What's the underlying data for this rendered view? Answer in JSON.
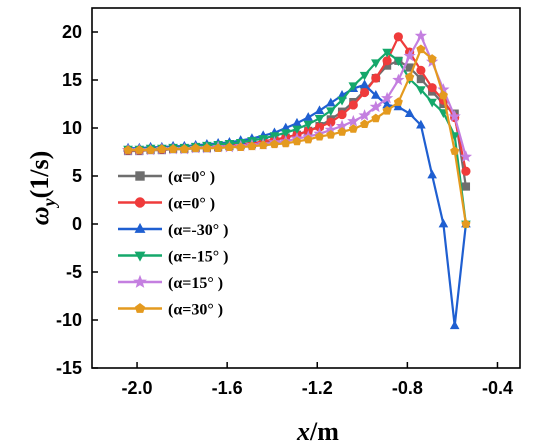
{
  "chart_data": {
    "type": "line",
    "title": "",
    "xlabel": {
      "italic": "x",
      "rest": "/m"
    },
    "ylabel": {
      "main": "ω",
      "sub": "y",
      "rest": "(1/s)"
    },
    "xlim": [
      -2.2,
      -0.3
    ],
    "ylim": [
      -15,
      22.5
    ],
    "xticks": [
      -2.0,
      -1.6,
      -1.2,
      -0.8,
      -0.4
    ],
    "xtick_labels": [
      "-2.0",
      "-1.6",
      "-1.2",
      "-0.8",
      "-0.4"
    ],
    "yticks": [
      -15,
      -10,
      -5,
      0,
      5,
      10,
      15,
      20
    ],
    "ytick_labels": [
      "-15",
      "-10",
      "-5",
      "0",
      "5",
      "10",
      "15",
      "20"
    ],
    "grid": false,
    "legend_position": "left",
    "x": [
      -2.04,
      -1.99,
      -1.94,
      -1.89,
      -1.84,
      -1.79,
      -1.74,
      -1.69,
      -1.64,
      -1.59,
      -1.54,
      -1.49,
      -1.44,
      -1.39,
      -1.34,
      -1.29,
      -1.24,
      -1.19,
      -1.14,
      -1.09,
      -1.04,
      -0.99,
      -0.94,
      -0.89,
      -0.84,
      -0.79,
      -0.74,
      -0.69,
      -0.64,
      -0.59,
      -0.54
    ],
    "series": [
      {
        "legend": "(α=0° )",
        "color": "#6e6e6e",
        "marker": "square",
        "values": [
          7.6,
          7.6,
          7.7,
          7.7,
          7.8,
          7.8,
          7.9,
          7.9,
          8.0,
          8.1,
          8.2,
          8.3,
          8.5,
          8.7,
          9.0,
          9.3,
          9.7,
          10.2,
          10.9,
          11.7,
          12.7,
          13.9,
          15.2,
          16.5,
          17.0,
          16.3,
          15.1,
          13.8,
          12.5,
          11.5,
          3.9
        ]
      },
      {
        "legend": "(α=0° )",
        "color": "#ef3b3b",
        "marker": "circle",
        "values": [
          7.7,
          7.7,
          7.8,
          7.8,
          7.9,
          7.9,
          8.0,
          8.0,
          8.1,
          8.2,
          8.3,
          8.4,
          8.6,
          8.8,
          9.0,
          9.3,
          9.7,
          10.1,
          10.6,
          11.4,
          12.4,
          13.7,
          15.2,
          17.0,
          19.5,
          17.9,
          16.0,
          14.2,
          12.9,
          11.1,
          5.5
        ]
      },
      {
        "legend": "(α=-30° )",
        "color": "#1f5fd1",
        "marker": "triangle",
        "values": [
          7.9,
          7.9,
          8.0,
          8.0,
          8.1,
          8.1,
          8.2,
          8.3,
          8.4,
          8.5,
          8.7,
          8.9,
          9.2,
          9.5,
          10.0,
          10.5,
          11.1,
          11.8,
          12.6,
          13.4,
          14.1,
          14.5,
          13.4,
          12.4,
          12.2,
          11.5,
          10.3,
          5.1,
          0.0,
          -10.6,
          0.0
        ]
      },
      {
        "legend": "(α=-15° )",
        "color": "#15a86b",
        "marker": "triangle-down",
        "values": [
          7.8,
          7.8,
          7.9,
          7.9,
          8.0,
          8.0,
          8.1,
          8.2,
          8.3,
          8.4,
          8.5,
          8.7,
          8.9,
          9.2,
          9.5,
          9.9,
          10.4,
          11.0,
          11.8,
          12.9,
          14.4,
          15.5,
          16.8,
          17.9,
          17.0,
          15.1,
          14.0,
          12.7,
          11.6,
          9.2,
          0.0
        ]
      },
      {
        "legend": "(α=15° )",
        "color": "#c47fe0",
        "marker": "star",
        "values": [
          7.7,
          7.7,
          7.7,
          7.8,
          7.8,
          7.8,
          7.9,
          7.9,
          8.0,
          8.0,
          8.1,
          8.2,
          8.3,
          8.5,
          8.6,
          8.9,
          9.1,
          9.4,
          9.8,
          10.2,
          10.7,
          11.3,
          12.2,
          13.1,
          15.0,
          17.5,
          19.6,
          16.9,
          14.0,
          11.2,
          7.0
        ]
      },
      {
        "legend": "(α=30° )",
        "color": "#e49a1f",
        "marker": "pentagon",
        "values": [
          7.7,
          7.7,
          7.7,
          7.8,
          7.8,
          7.8,
          7.9,
          7.9,
          7.9,
          8.0,
          8.0,
          8.1,
          8.2,
          8.3,
          8.4,
          8.6,
          8.8,
          9.1,
          9.3,
          9.6,
          9.9,
          10.4,
          11.0,
          11.8,
          12.7,
          15.3,
          18.2,
          17.2,
          13.4,
          7.6,
          0.0
        ]
      }
    ]
  }
}
